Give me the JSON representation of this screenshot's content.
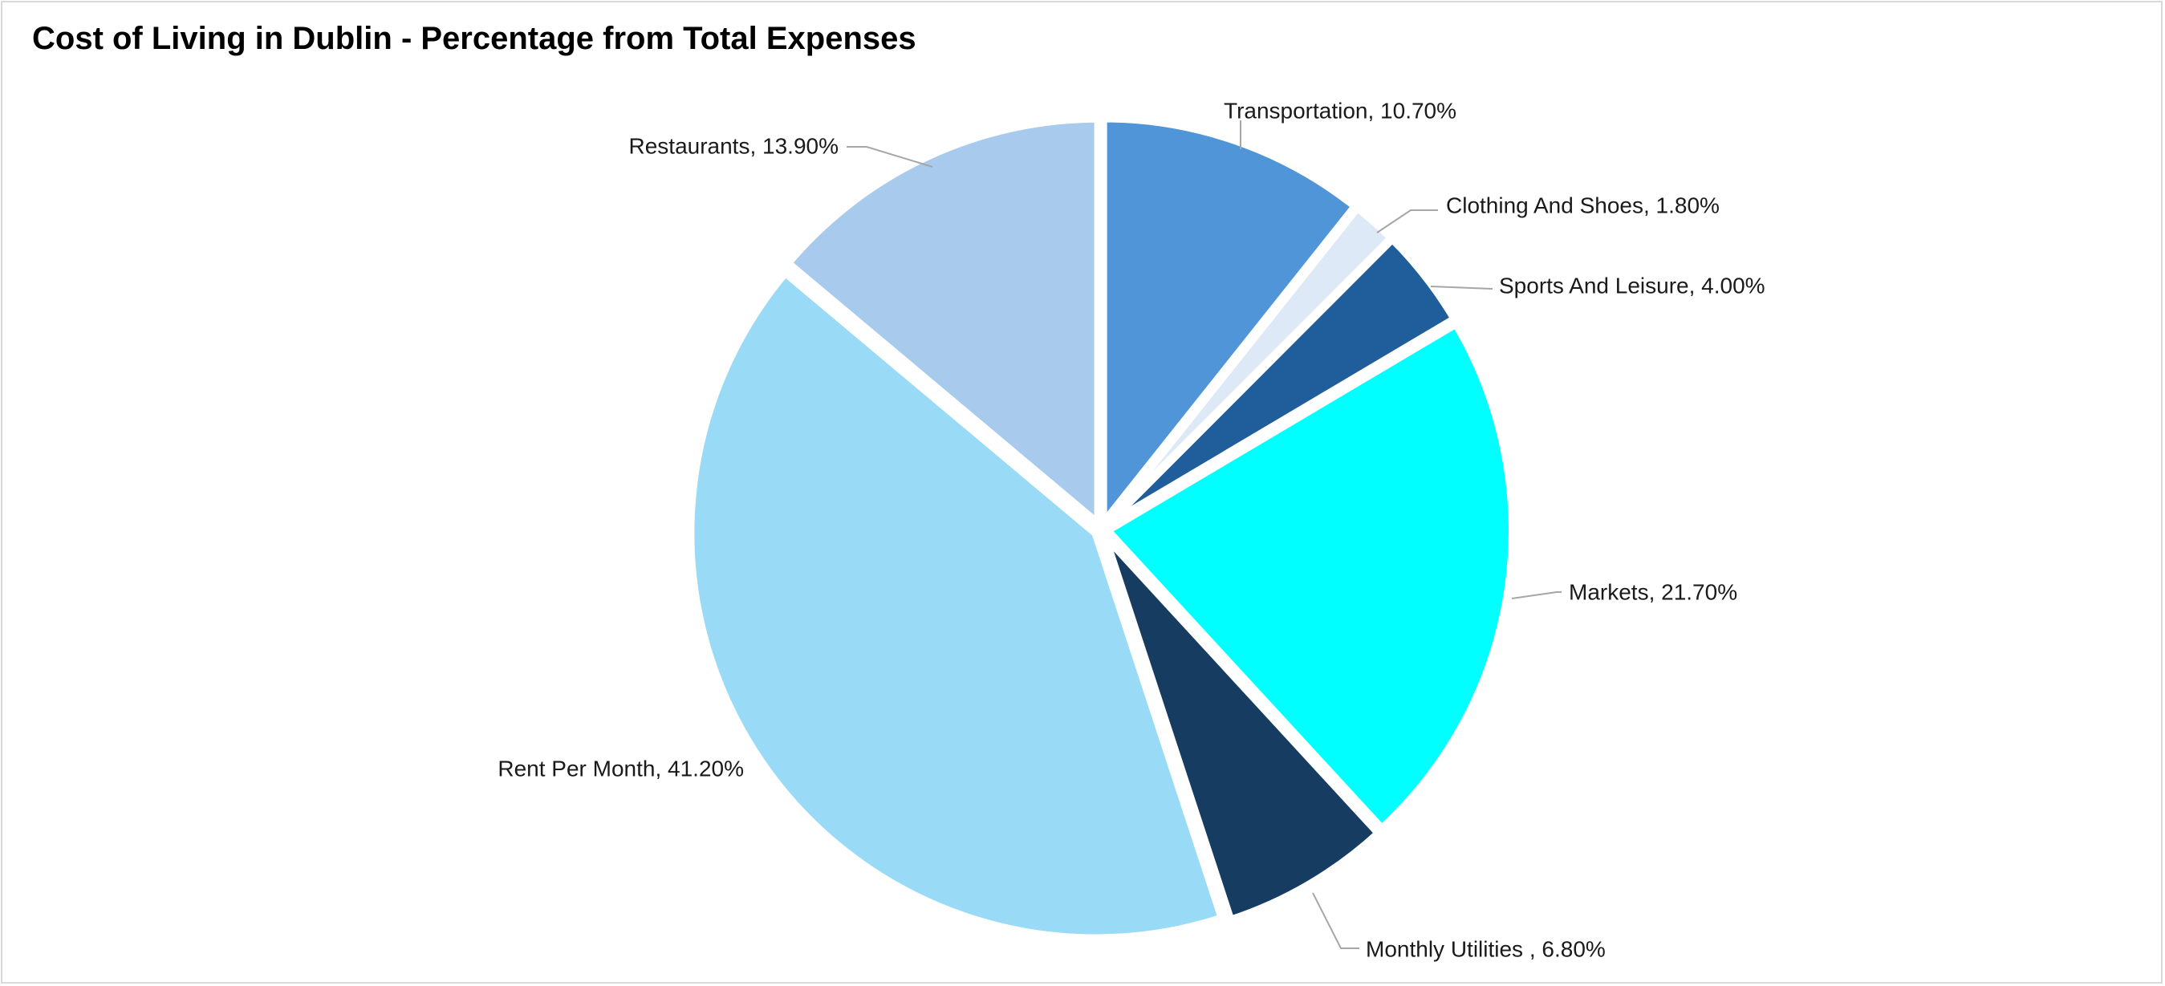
{
  "chart_data": {
    "type": "pie",
    "title": "Cost of Living in Dublin - Percentage from Total Expenses",
    "slices": [
      {
        "label": "Transportation, 10.70%",
        "value": 10.7,
        "color": "#4f95d8"
      },
      {
        "label": "Clothing And Shoes, 1.80%",
        "value": 1.8,
        "color": "#dde9f7"
      },
      {
        "label": "Sports And Leisure, 4.00%",
        "value": 4.0,
        "color": "#1f5e9b"
      },
      {
        "label": "Markets, 21.70%",
        "value": 21.7,
        "color": "#00ffff"
      },
      {
        "label": "Monthly Utilities , 6.80%",
        "value": 6.8,
        "color": "#173c62"
      },
      {
        "label": "Rent Per Month, 41.20%",
        "value": 41.2,
        "color": "#99dbf7"
      },
      {
        "label": "Restaurants, 13.90%",
        "value": 13.9,
        "color": "#a8cbed"
      }
    ],
    "start_angle": "12 o'clock",
    "direction": "clockwise",
    "legend": "none"
  }
}
